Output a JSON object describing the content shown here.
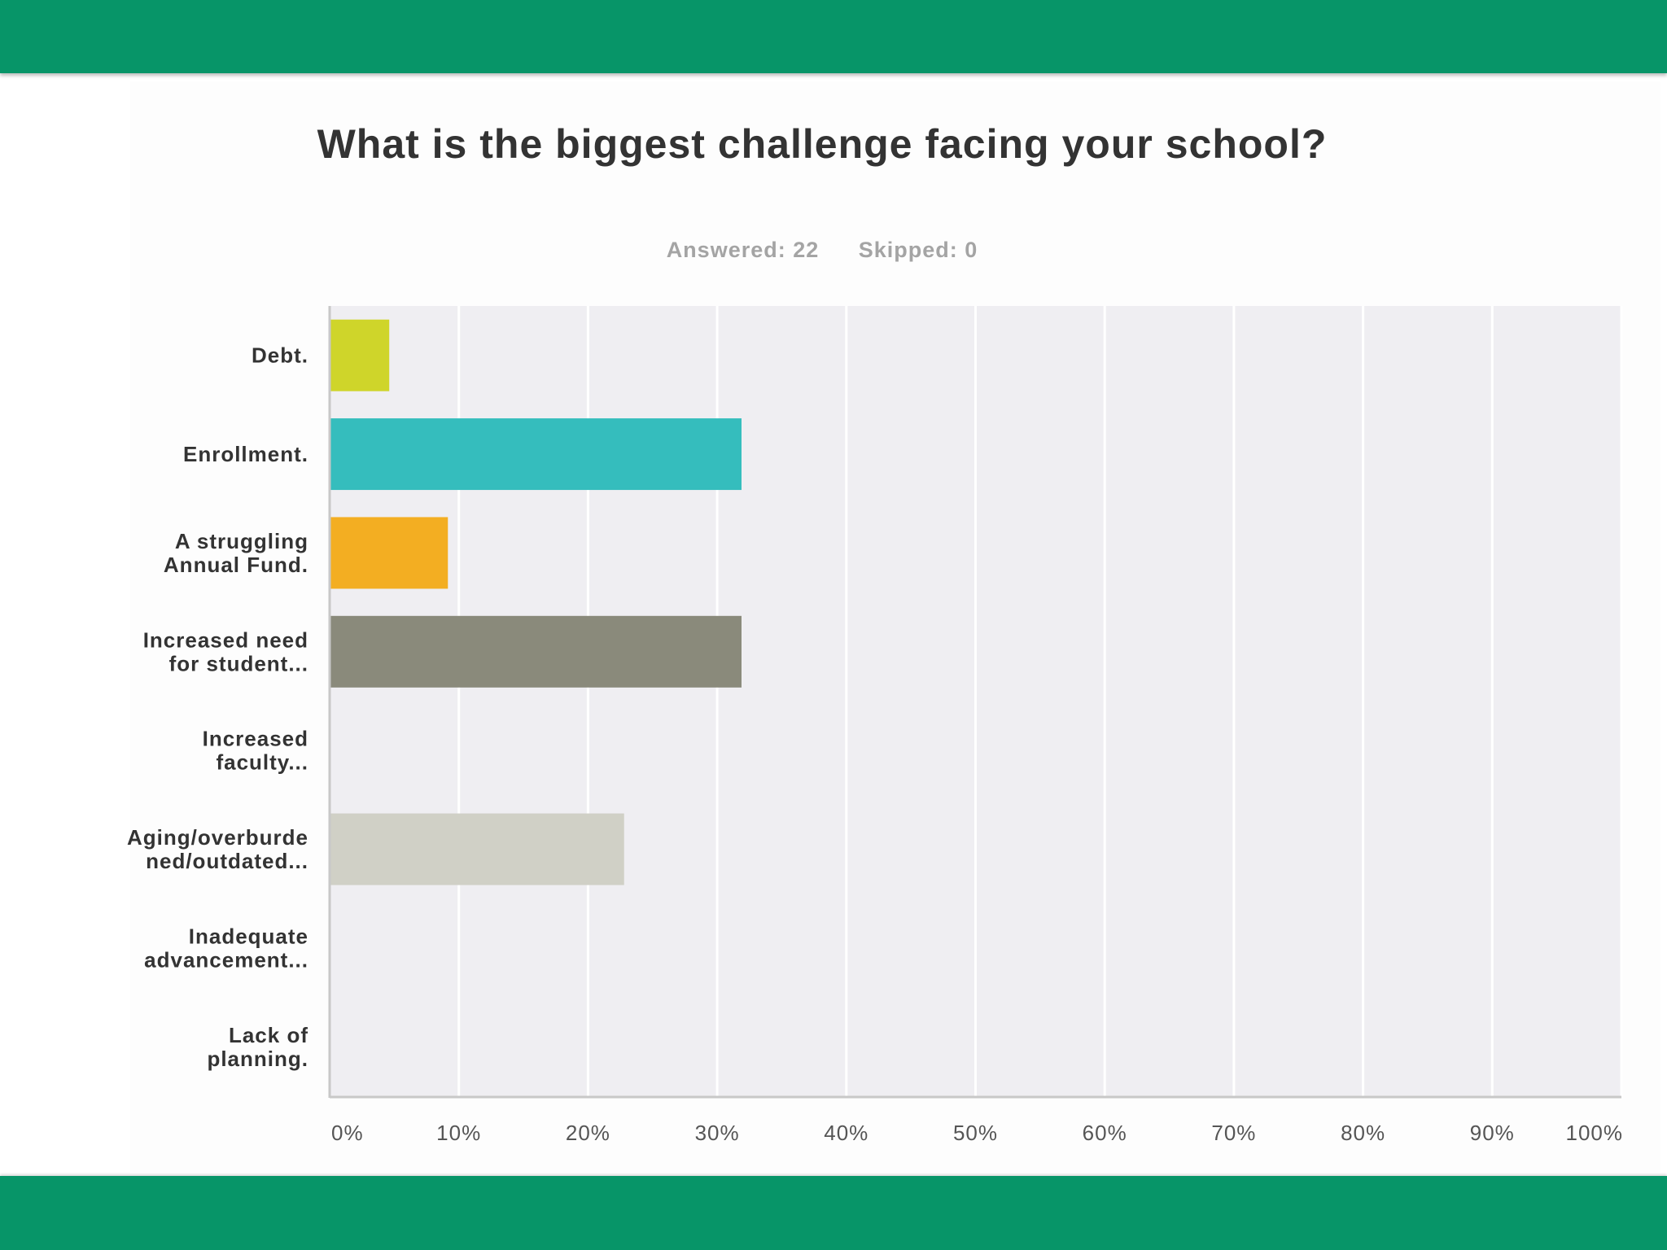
{
  "colors": {
    "band": "#079568",
    "plot_bg": "#efeef2",
    "grid": "#ffffff",
    "axis": "#c8c8c8"
  },
  "header": {
    "title": "What is the biggest challenge facing your school?",
    "answered": "Answered: 22",
    "skipped": "Skipped: 0"
  },
  "chart_data": {
    "type": "bar",
    "orientation": "horizontal",
    "title": "What is the biggest challenge facing your school?",
    "xlabel": "",
    "ylabel": "",
    "xlim": [
      0,
      100
    ],
    "x_ticks": [
      "0%",
      "10%",
      "20%",
      "30%",
      "40%",
      "50%",
      "60%",
      "70%",
      "80%",
      "90%",
      "100%"
    ],
    "grid": true,
    "categories": [
      [
        "Debt."
      ],
      [
        "Enrollment."
      ],
      [
        "A struggling",
        "Annual Fund."
      ],
      [
        "Increased need",
        "for student..."
      ],
      [
        "Increased",
        "faculty..."
      ],
      [
        "Aging/overburde",
        "ned/outdated..."
      ],
      [
        "Inadequate",
        "advancement..."
      ],
      [
        "Lack of",
        "planning."
      ]
    ],
    "values": [
      4.55,
      31.82,
      9.09,
      31.82,
      0,
      22.73,
      0,
      0
    ],
    "bar_colors": [
      "#cfd52a",
      "#35bdbd",
      "#f3ae22",
      "#8a8a7b",
      "#d7d7d7",
      "#d0d0c6",
      "#cccccc",
      "#cccccc"
    ]
  }
}
